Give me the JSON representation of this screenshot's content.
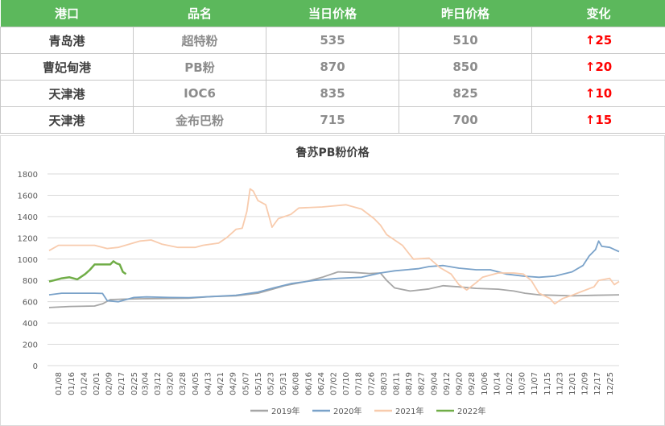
{
  "table": {
    "headers": [
      "港口",
      "品名",
      "当日价格",
      "昨日价格",
      "变化"
    ],
    "rows": [
      {
        "port": "青岛港",
        "product": "超特粉",
        "today": "535",
        "yesterday": "510",
        "change": "25"
      },
      {
        "port": "曹妃甸港",
        "product": "PB粉",
        "today": "870",
        "yesterday": "850",
        "change": "20"
      },
      {
        "port": "天津港",
        "product": "IOC6",
        "today": "835",
        "yesterday": "825",
        "change": "10"
      },
      {
        "port": "天津港",
        "product": "金布巴粉",
        "today": "715",
        "yesterday": "700",
        "change": "15"
      }
    ],
    "up_arrow": "↑"
  },
  "colors": {
    "header_bg": "#5cb85c",
    "up": "#ff0000",
    "grid": "#d9d9d9"
  },
  "chart_data": {
    "type": "line",
    "title": "鲁苏PB粉价格",
    "xlabel": "",
    "ylabel": "",
    "ylim": [
      0,
      1800
    ],
    "yticks": [
      0,
      200,
      400,
      600,
      800,
      1000,
      1200,
      1400,
      1600,
      1800
    ],
    "xlim": [
      "01/01",
      "12/31"
    ],
    "x_tick_labels": [
      "01/08",
      "01/16",
      "01/24",
      "02/01",
      "02/09",
      "02/17",
      "02/25",
      "03/04",
      "03/12",
      "03/20",
      "03/28",
      "04/05",
      "04/13",
      "04/21",
      "04/29",
      "05/07",
      "05/15",
      "05/23",
      "05/31",
      "06/08",
      "06/16",
      "06/24",
      "07/02",
      "07/10",
      "07/18",
      "07/26",
      "08/03",
      "08/11",
      "08/19",
      "08/27",
      "09/04",
      "09/12",
      "09/20",
      "09/28",
      "10/06",
      "10/14",
      "10/22",
      "10/30",
      "11/07",
      "11/15",
      "11/23",
      "12/01",
      "12/09",
      "12/17",
      "12/25"
    ],
    "legend_position": "bottom",
    "series": [
      {
        "name": "2019年",
        "color": "#a6a6a6",
        "points": [
          [
            "01/02",
            545
          ],
          [
            "01/15",
            555
          ],
          [
            "01/31",
            560
          ],
          [
            "02/05",
            580
          ],
          [
            "02/10",
            620
          ],
          [
            "02/20",
            625
          ],
          [
            "03/01",
            628
          ],
          [
            "03/15",
            630
          ],
          [
            "04/01",
            632
          ],
          [
            "04/15",
            648
          ],
          [
            "05/01",
            655
          ],
          [
            "05/15",
            680
          ],
          [
            "05/25",
            720
          ],
          [
            "06/01",
            750
          ],
          [
            "06/15",
            790
          ],
          [
            "06/25",
            830
          ],
          [
            "07/05",
            880
          ],
          [
            "07/15",
            875
          ],
          [
            "07/25",
            865
          ],
          [
            "08/01",
            870
          ],
          [
            "08/05",
            800
          ],
          [
            "08/10",
            730
          ],
          [
            "08/20",
            700
          ],
          [
            "09/01",
            720
          ],
          [
            "09/10",
            750
          ],
          [
            "09/20",
            740
          ],
          [
            "10/01",
            725
          ],
          [
            "10/15",
            718
          ],
          [
            "10/25",
            700
          ],
          [
            "11/01",
            680
          ],
          [
            "11/10",
            665
          ],
          [
            "11/20",
            660
          ],
          [
            "12/01",
            655
          ],
          [
            "12/15",
            660
          ],
          [
            "12/31",
            665
          ]
        ]
      },
      {
        "name": "2020年",
        "color": "#7aa2c9",
        "points": [
          [
            "01/02",
            665
          ],
          [
            "01/10",
            680
          ],
          [
            "01/31",
            680
          ],
          [
            "02/05",
            678
          ],
          [
            "02/08",
            610
          ],
          [
            "02/15",
            600
          ],
          [
            "02/25",
            640
          ],
          [
            "03/05",
            645
          ],
          [
            "03/20",
            640
          ],
          [
            "04/01",
            638
          ],
          [
            "04/15",
            648
          ],
          [
            "05/01",
            660
          ],
          [
            "05/15",
            690
          ],
          [
            "05/25",
            730
          ],
          [
            "06/05",
            770
          ],
          [
            "06/20",
            800
          ],
          [
            "07/05",
            820
          ],
          [
            "07/20",
            830
          ],
          [
            "08/01",
            870
          ],
          [
            "08/10",
            890
          ],
          [
            "08/25",
            910
          ],
          [
            "09/01",
            930
          ],
          [
            "09/10",
            940
          ],
          [
            "09/20",
            915
          ],
          [
            "10/01",
            900
          ],
          [
            "10/10",
            900
          ],
          [
            "10/20",
            860
          ],
          [
            "10/31",
            840
          ],
          [
            "11/10",
            830
          ],
          [
            "11/20",
            840
          ],
          [
            "12/01",
            880
          ],
          [
            "12/08",
            940
          ],
          [
            "12/12",
            1030
          ],
          [
            "12/16",
            1090
          ],
          [
            "12/18",
            1170
          ],
          [
            "12/20",
            1120
          ],
          [
            "12/25",
            1110
          ],
          [
            "12/31",
            1070
          ]
        ]
      },
      {
        "name": "2021年",
        "color": "#f8cbad",
        "points": [
          [
            "01/02",
            1080
          ],
          [
            "01/08",
            1130
          ],
          [
            "01/15",
            1130
          ],
          [
            "01/31",
            1130
          ],
          [
            "02/08",
            1100
          ],
          [
            "02/15",
            1110
          ],
          [
            "02/22",
            1140
          ],
          [
            "03/01",
            1170
          ],
          [
            "03/08",
            1180
          ],
          [
            "03/15",
            1140
          ],
          [
            "03/25",
            1110
          ],
          [
            "04/05",
            1110
          ],
          [
            "04/10",
            1130
          ],
          [
            "04/20",
            1150
          ],
          [
            "04/25",
            1200
          ],
          [
            "05/01",
            1280
          ],
          [
            "05/05",
            1290
          ],
          [
            "05/08",
            1450
          ],
          [
            "05/10",
            1660
          ],
          [
            "05/12",
            1640
          ],
          [
            "05/15",
            1550
          ],
          [
            "05/20",
            1510
          ],
          [
            "05/24",
            1300
          ],
          [
            "05/28",
            1380
          ],
          [
            "06/05",
            1420
          ],
          [
            "06/10",
            1480
          ],
          [
            "06/25",
            1490
          ],
          [
            "07/10",
            1510
          ],
          [
            "07/20",
            1470
          ],
          [
            "07/28",
            1380
          ],
          [
            "08/01",
            1320
          ],
          [
            "08/05",
            1230
          ],
          [
            "08/15",
            1130
          ],
          [
            "08/22",
            1000
          ],
          [
            "09/01",
            1010
          ],
          [
            "09/08",
            920
          ],
          [
            "09/15",
            860
          ],
          [
            "09/20",
            760
          ],
          [
            "09/25",
            710
          ],
          [
            "10/01",
            780
          ],
          [
            "10/05",
            830
          ],
          [
            "10/15",
            870
          ],
          [
            "10/25",
            870
          ],
          [
            "10/31",
            860
          ],
          [
            "11/05",
            800
          ],
          [
            "11/10",
            680
          ],
          [
            "11/17",
            630
          ],
          [
            "11/20",
            580
          ],
          [
            "11/25",
            630
          ],
          [
            "12/01",
            660
          ],
          [
            "12/08",
            700
          ],
          [
            "12/15",
            740
          ],
          [
            "12/18",
            800
          ],
          [
            "12/25",
            820
          ],
          [
            "12/28",
            760
          ],
          [
            "12/31",
            790
          ]
        ]
      },
      {
        "name": "2022年",
        "color": "#70ad47",
        "points": [
          [
            "01/02",
            790
          ],
          [
            "01/05",
            800
          ],
          [
            "01/10",
            820
          ],
          [
            "01/15",
            830
          ],
          [
            "01/20",
            810
          ],
          [
            "01/25",
            860
          ],
          [
            "01/28",
            900
          ],
          [
            "01/31",
            950
          ],
          [
            "02/05",
            950
          ],
          [
            "02/10",
            950
          ],
          [
            "02/12",
            980
          ],
          [
            "02/14",
            960
          ],
          [
            "02/16",
            950
          ],
          [
            "02/18",
            880
          ],
          [
            "02/20",
            860
          ]
        ]
      }
    ]
  }
}
